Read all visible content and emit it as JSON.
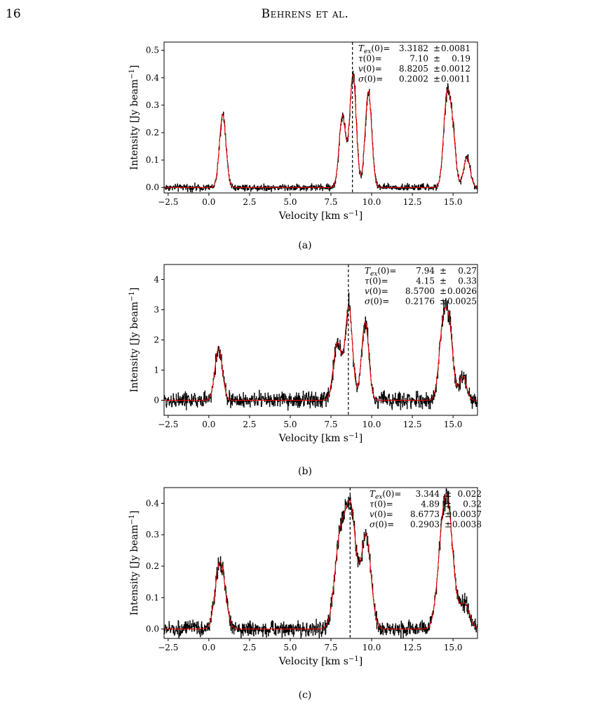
{
  "header": {
    "page_number": "16",
    "running_head": "Behrens et al."
  },
  "figures": [
    {
      "caption": "(a)",
      "chart_data": {
        "type": "line",
        "xlabel": "Velocity [km s−1]",
        "ylabel": "Intensity [Jy beam−1]",
        "xlim": [
          -2.75,
          16.5
        ],
        "ylim": [
          -0.02,
          0.53
        ],
        "xticks": [
          -2.5,
          0.0,
          2.5,
          5.0,
          7.5,
          10.0,
          12.5,
          15.0
        ],
        "xtick_labels": [
          "−2.5",
          "0.0",
          "2.5",
          "5.0",
          "7.5",
          "10.0",
          "12.5",
          "15.0"
        ],
        "yticks": [
          0.0,
          0.1,
          0.2,
          0.3,
          0.4,
          0.5
        ],
        "ytick_labels": [
          "0.0",
          "0.1",
          "0.2",
          "0.3",
          "0.4",
          "0.5"
        ],
        "vline": 8.8205,
        "noise": 0.006,
        "grid": false,
        "colors": {
          "data": "#000000",
          "model": "#ff0000"
        },
        "model_components": [
          [
            0.85,
            0.265,
            0.2
          ],
          [
            8.2,
            0.26,
            0.2
          ],
          [
            8.85,
            0.41,
            0.2
          ],
          [
            9.8,
            0.35,
            0.2
          ],
          [
            14.6,
            0.3,
            0.2
          ],
          [
            14.95,
            0.2,
            0.2
          ],
          [
            15.85,
            0.11,
            0.2
          ]
        ],
        "annotations": [
          {
            "label": "T",
            "sub": "ex",
            "arg": "(0)=",
            "value": "3.3182",
            "pm": "±",
            "err": "0.0081"
          },
          {
            "label": "τ",
            "sub": "",
            "arg": "(0)=",
            "value": "7.10",
            "pm": "±",
            "err": "0.19"
          },
          {
            "label": "v",
            "sub": "",
            "arg": "(0)=",
            "value": "8.8205",
            "pm": "±",
            "err": "0.0012"
          },
          {
            "label": "σ",
            "sub": "",
            "arg": "(0)=",
            "value": "0.2002",
            "pm": "±",
            "err": "0.0011"
          }
        ]
      }
    },
    {
      "caption": "(b)",
      "chart_data": {
        "type": "line",
        "xlabel": "Velocity [km s−1]",
        "ylabel": "Intensity [Jy beam−1]",
        "xlim": [
          -2.75,
          16.5
        ],
        "ylim": [
          -0.5,
          4.5
        ],
        "xticks": [
          -2.5,
          0.0,
          2.5,
          5.0,
          7.5,
          10.0,
          12.5,
          15.0
        ],
        "xtick_labels": [
          "−2.5",
          "0.0",
          "2.5",
          "5.0",
          "7.5",
          "10.0",
          "12.5",
          "15.0"
        ],
        "yticks": [
          0,
          1,
          2,
          3,
          4
        ],
        "ytick_labels": [
          "0",
          "1",
          "2",
          "3",
          "4"
        ],
        "vline": 8.57,
        "noise": 0.13,
        "grid": false,
        "colors": {
          "data": "#000000",
          "model": "#ff0000"
        },
        "model_components": [
          [
            0.6,
            1.7,
            0.23
          ],
          [
            7.9,
            1.9,
            0.25
          ],
          [
            8.6,
            3.1,
            0.22
          ],
          [
            9.6,
            2.6,
            0.22
          ],
          [
            14.4,
            2.5,
            0.25
          ],
          [
            14.8,
            1.9,
            0.22
          ],
          [
            15.6,
            0.8,
            0.22
          ]
        ],
        "annotations": [
          {
            "label": "T",
            "sub": "ex",
            "arg": "(0)=",
            "value": "7.94",
            "pm": "±",
            "err": "0.27"
          },
          {
            "label": "τ",
            "sub": "",
            "arg": "(0)=",
            "value": "4.15",
            "pm": "±",
            "err": "0.33"
          },
          {
            "label": "v",
            "sub": "",
            "arg": "(0)=",
            "value": "8.5700",
            "pm": "±",
            "err": "0.0026"
          },
          {
            "label": "σ",
            "sub": "",
            "arg": "(0)=",
            "value": "0.2176",
            "pm": "±",
            "err": "0.0025"
          }
        ]
      }
    },
    {
      "caption": "(c)",
      "chart_data": {
        "type": "line",
        "xlabel": "Velocity [km s−1]",
        "ylabel": "Intensity [Jy beam−1]",
        "xlim": [
          -2.75,
          16.5
        ],
        "ylim": [
          -0.03,
          0.45
        ],
        "xticks": [
          -2.5,
          0.0,
          2.5,
          5.0,
          7.5,
          10.0,
          12.5,
          15.0
        ],
        "xtick_labels": [
          "−2.5",
          "0.0",
          "2.5",
          "5.0",
          "7.5",
          "10.0",
          "12.5",
          "15.0"
        ],
        "yticks": [
          0.0,
          0.1,
          0.2,
          0.3,
          0.4
        ],
        "ytick_labels": [
          "0.0",
          "0.1",
          "0.2",
          "0.3",
          "0.4"
        ],
        "vline": 8.6773,
        "noise": 0.012,
        "grid": false,
        "colors": {
          "data": "#000000",
          "model": "#ff0000"
        },
        "model_components": [
          [
            0.7,
            0.215,
            0.3
          ],
          [
            8.1,
            0.3,
            0.35
          ],
          [
            8.75,
            0.34,
            0.3
          ],
          [
            9.65,
            0.3,
            0.3
          ],
          [
            14.4,
            0.3,
            0.33
          ],
          [
            14.8,
            0.22,
            0.3
          ],
          [
            15.7,
            0.08,
            0.3
          ]
        ],
        "annotations": [
          {
            "label": "T",
            "sub": "ex",
            "arg": "(0)=",
            "value": "3.344",
            "pm": "±",
            "err": "0.022"
          },
          {
            "label": "τ",
            "sub": "",
            "arg": "(0)=",
            "value": "4.89",
            "pm": "±",
            "err": "0.32"
          },
          {
            "label": "v",
            "sub": "",
            "arg": "(0)=",
            "value": "8.6773",
            "pm": "±",
            "err": "0.0037"
          },
          {
            "label": "σ",
            "sub": "",
            "arg": "(0)=",
            "value": "0.2903",
            "pm": "±",
            "err": "0.0038"
          }
        ]
      }
    }
  ]
}
